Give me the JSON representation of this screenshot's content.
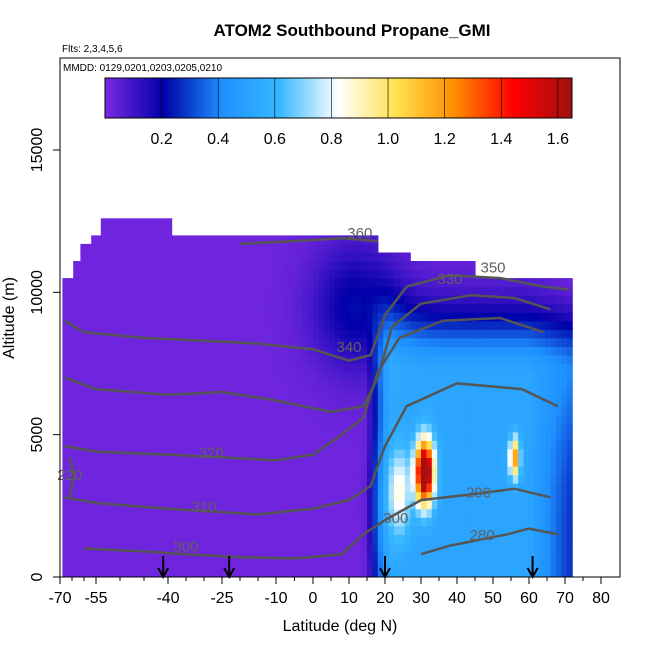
{
  "chart_data": {
    "type": "heatmap",
    "title": "ATOM2 Southbound Propane_GMI",
    "flights_label": "Flts: 2,3,4,5,6",
    "dates_label": "MMDD: 0129,0201,0203,0205,0210",
    "xlabel": "Latitude (deg N)",
    "ylabel": "Altitude (m)",
    "xlim": [
      -70,
      80
    ],
    "ylim": [
      0,
      18000
    ],
    "x_ticks": [
      -70,
      -55,
      -40,
      -25,
      -10,
      0,
      10,
      20,
      30,
      40,
      50,
      60,
      70,
      80
    ],
    "y_ticks": [
      0,
      5000,
      10000,
      15000
    ],
    "colorbar": {
      "ticks": [
        0.2,
        0.4,
        0.6,
        0.8,
        1.0,
        1.2,
        1.4,
        1.6
      ],
      "tick_labels": [
        "0.2",
        "0.4",
        "0.6",
        "0.8",
        "1.0",
        "1.2",
        "1.4",
        "1.6"
      ],
      "min": 0.0,
      "max": 1.65,
      "colors": [
        "#7a29e3",
        "#0000a8",
        "#1e90ff",
        "#38b8ff",
        "#ffffff",
        "#ffe14d",
        "#ff8c00",
        "#ff0000",
        "#a01010"
      ]
    },
    "flight_markers_lat": [
      -41,
      -23,
      20,
      61
    ],
    "contour_labels": [
      {
        "label": "360",
        "lat": 13,
        "alt": 11900
      },
      {
        "label": "350",
        "lat": 50,
        "alt": 10700
      },
      {
        "label": "330",
        "lat": 38,
        "alt": 10300
      },
      {
        "label": "340",
        "lat": 10,
        "alt": 7900
      },
      {
        "label": "320",
        "lat": -28,
        "alt": 4200
      },
      {
        "label": "310",
        "lat": -30,
        "alt": 2300
      },
      {
        "label": "300",
        "lat": -35,
        "alt": 900
      },
      {
        "label": "300",
        "lat": 23,
        "alt": 1900
      },
      {
        "label": "290",
        "lat": 46,
        "alt": 2800
      },
      {
        "label": "280",
        "lat": 47,
        "alt": 1300
      },
      {
        "label": "220",
        "lat": -66,
        "alt": 3400
      }
    ]
  }
}
